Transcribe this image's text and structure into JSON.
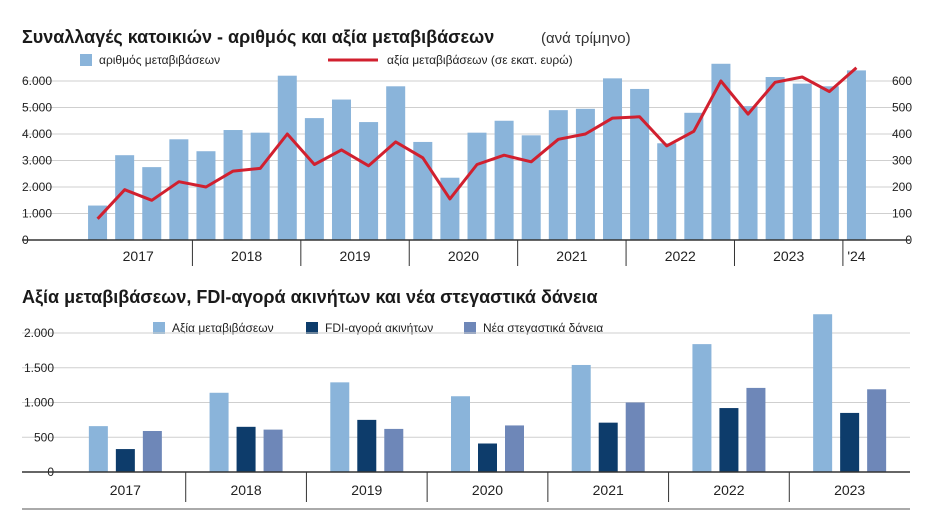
{
  "colors": {
    "light_blue": "#8ab4da",
    "line_red": "#d1202f",
    "navy": "#0d3c6b",
    "slate": "#6e87b8",
    "grid": "#cfcfcf",
    "axis": "#333333"
  },
  "chart_data": [
    {
      "type": "bar+line",
      "title": "Συναλλαγές κατοικιών - αριθμός και αξία μεταβιβάσεων",
      "subtitle": "(ανά τρίμηνο)",
      "legend": [
        "αριθμός μεταβιβάσεων",
        "αξία μεταβιβάσεων (σε εκατ. ευρώ)"
      ],
      "left_ticks": [
        "6.000",
        "5.000",
        "4.000",
        "3.000",
        "2.000",
        "1.000",
        "0"
      ],
      "right_ticks": [
        "600",
        "500",
        "400",
        "300",
        "200",
        "100",
        "0"
      ],
      "ylim_left": [
        0,
        6000
      ],
      "ylim_right": [
        0,
        600
      ],
      "years": [
        "2017",
        "2018",
        "2019",
        "2020",
        "2021",
        "2022",
        "2023",
        "'24"
      ],
      "quarters_per_year": [
        4,
        4,
        4,
        4,
        4,
        4,
        4,
        1
      ],
      "bar_values": [
        1300,
        3200,
        2750,
        3800,
        3350,
        4150,
        4050,
        6200,
        4600,
        5300,
        4450,
        5800,
        3700,
        2350,
        4050,
        4500,
        3950,
        4900,
        4950,
        6100,
        5700,
        3650,
        4800,
        6650,
        5050,
        6150,
        5900,
        5800,
        6400
      ],
      "line_values": [
        80,
        190,
        150,
        220,
        200,
        260,
        270,
        400,
        285,
        340,
        280,
        370,
        310,
        155,
        285,
        320,
        295,
        380,
        400,
        460,
        465,
        355,
        410,
        600,
        475,
        595,
        615,
        560,
        650
      ]
    },
    {
      "type": "bar",
      "title": "Αξία μεταβιβάσεων, FDI-αγορά ακινήτων και νέα στεγαστικά δάνεια",
      "categories": [
        "2017",
        "2018",
        "2019",
        "2020",
        "2021",
        "2022",
        "2023"
      ],
      "ticks": [
        "2.000",
        "1.500",
        "1.000",
        "500",
        "0"
      ],
      "ylim": [
        0,
        2250
      ],
      "series": [
        {
          "name": "Αξία μεταβιβάσεων",
          "values": [
            660,
            1140,
            1290,
            1090,
            1540,
            1840,
            2270
          ]
        },
        {
          "name": "FDI-αγορά ακινήτων",
          "values": [
            330,
            650,
            750,
            410,
            710,
            920,
            850
          ]
        },
        {
          "name": "Νέα στεγαστικά δάνεια",
          "values": [
            590,
            610,
            620,
            670,
            1000,
            1210,
            1190
          ]
        }
      ]
    }
  ]
}
